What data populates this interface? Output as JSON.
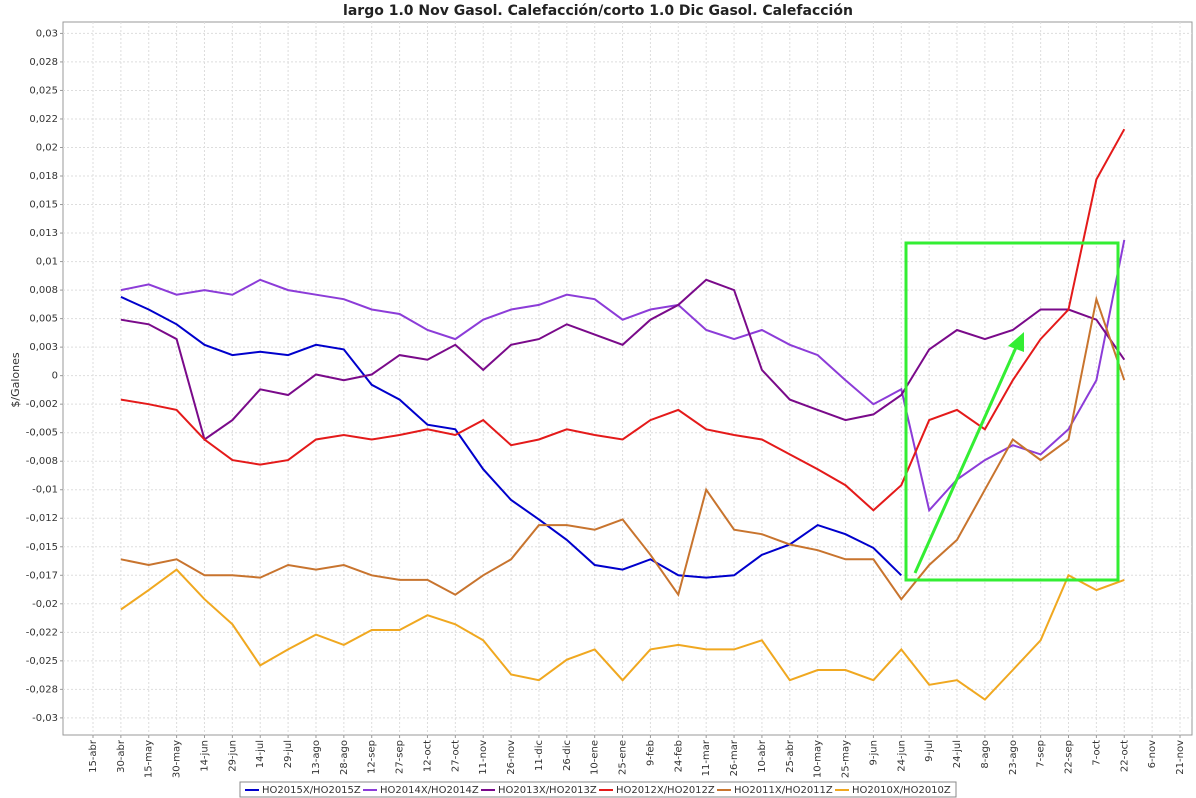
{
  "chart_data": {
    "type": "line",
    "title": "largo 1.0 Nov Gasol. Calefacción/corto 1.0 Dic Gasol. Calefacción",
    "y_label": "$/Galones",
    "categories": [
      "15-abr",
      "30-abr",
      "15-may",
      "30-may",
      "14-jun",
      "29-jun",
      "14-jul",
      "29-jul",
      "13-ago",
      "28-ago",
      "12-sep",
      "27-sep",
      "12-oct",
      "27-oct",
      "11-nov",
      "26-nov",
      "11-dic",
      "26-dic",
      "10-ene",
      "25-ene",
      "9-feb",
      "24-feb",
      "11-mar",
      "26-mar",
      "10-abr",
      "25-abr",
      "10-may",
      "25-may",
      "9-jun",
      "24-jun",
      "9-jul",
      "24-jul",
      "8-ago",
      "23-ago",
      "7-sep",
      "22-sep",
      "7-oct",
      "22-oct",
      "6-nov",
      "21-nov"
    ],
    "ylim": [
      -0.0315,
      0.031
    ],
    "yticks": [
      {
        "value": 0.03,
        "label": "0,03"
      },
      {
        "value": 0.0275,
        "label": "0,028"
      },
      {
        "value": 0.025,
        "label": "0,025"
      },
      {
        "value": 0.0225,
        "label": "0,022"
      },
      {
        "value": 0.02,
        "label": "0,02"
      },
      {
        "value": 0.0175,
        "label": "0,018"
      },
      {
        "value": 0.015,
        "label": "0,015"
      },
      {
        "value": 0.0125,
        "label": "0,013"
      },
      {
        "value": 0.01,
        "label": "0,01"
      },
      {
        "value": 0.0075,
        "label": "0,008"
      },
      {
        "value": 0.005,
        "label": "0,005"
      },
      {
        "value": 0.0025,
        "label": "0,003"
      },
      0,
      {
        "value": -0.0025,
        "label": "-0,002"
      },
      {
        "value": -0.005,
        "label": "-0,005"
      },
      {
        "value": -0.0075,
        "label": "-0,008"
      },
      {
        "value": -0.01,
        "label": "-0,01"
      },
      {
        "value": -0.0125,
        "label": "-0,012"
      },
      {
        "value": -0.015,
        "label": "-0,015"
      },
      {
        "value": -0.0175,
        "label": "-0,017"
      },
      {
        "value": -0.02,
        "label": "-0,02"
      },
      {
        "value": -0.0225,
        "label": "-0,022"
      },
      {
        "value": -0.025,
        "label": "-0,025"
      },
      {
        "value": -0.0275,
        "label": "-0,028"
      },
      {
        "value": -0.03,
        "label": "-0,03"
      }
    ],
    "grid": true,
    "legend": "bottom",
    "series": [
      {
        "name": "HO2015X/HO2015Z",
        "color": "#0000cc",
        "values": [
          null,
          0.0069,
          0.0058,
          0.0045,
          0.0027,
          0.0018,
          0.0021,
          0.0018,
          0.0027,
          0.0023,
          -0.0008,
          -0.0021,
          -0.0043,
          -0.0047,
          -0.0082,
          -0.0109,
          -0.0126,
          -0.0144,
          -0.0166,
          -0.017,
          -0.0161,
          -0.0175,
          -0.0177,
          -0.0175,
          -0.0157,
          -0.0148,
          -0.0131,
          -0.0139,
          -0.0151,
          -0.0175,
          null,
          null,
          null,
          null,
          null,
          null,
          null,
          null,
          null,
          null
        ]
      },
      {
        "name": "HO2014X/HO2014Z",
        "color": "#8c3cd8",
        "values": [
          null,
          0.0075,
          0.008,
          0.0071,
          0.0075,
          0.0071,
          0.0084,
          0.0075,
          0.0071,
          0.0067,
          0.0058,
          0.0054,
          0.004,
          0.0032,
          0.0049,
          0.0058,
          0.0062,
          0.0071,
          0.0067,
          0.0049,
          0.0058,
          0.0062,
          0.004,
          0.0032,
          0.004,
          0.0027,
          0.0018,
          -0.0004,
          -0.0025,
          -0.0012,
          -0.0118,
          -0.0091,
          -0.0074,
          -0.0061,
          -0.0069,
          -0.0047,
          -0.0004,
          0.0119,
          null,
          null
        ]
      },
      {
        "name": "HO2013X/HO2013Z",
        "color": "#7a0a8a",
        "values": [
          null,
          0.0049,
          0.0045,
          0.0032,
          -0.0056,
          -0.0039,
          -0.0012,
          -0.0017,
          0.0001,
          -0.0004,
          0.0001,
          0.0018,
          0.0014,
          0.0027,
          0.0005,
          0.0027,
          0.0032,
          0.0045,
          0.0036,
          0.0027,
          0.0049,
          0.0062,
          0.0084,
          0.0075,
          0.0005,
          -0.0021,
          -0.003,
          -0.0039,
          -0.0034,
          -0.0017,
          0.0023,
          0.004,
          0.0032,
          0.004,
          0.0058,
          0.0058,
          0.0049,
          0.0014,
          null,
          null
        ]
      },
      {
        "name": "HO2012X/HO2012Z",
        "color": "#e41a1a",
        "values": [
          null,
          -0.0021,
          -0.0025,
          -0.003,
          -0.0056,
          -0.0074,
          -0.0078,
          -0.0074,
          -0.0056,
          -0.0052,
          -0.0056,
          -0.0052,
          -0.0047,
          -0.0052,
          -0.0039,
          -0.0061,
          -0.0056,
          -0.0047,
          -0.0052,
          -0.0056,
          -0.0039,
          -0.003,
          -0.0047,
          -0.0052,
          -0.0056,
          -0.0069,
          -0.0082,
          -0.0096,
          -0.0118,
          -0.0096,
          -0.0039,
          -0.003,
          -0.0047,
          -0.0004,
          0.0032,
          0.0058,
          0.0172,
          0.0216,
          null,
          null
        ]
      },
      {
        "name": "HO2011X/HO2011Z",
        "color": "#c8742e",
        "values": [
          null,
          -0.0161,
          -0.0166,
          -0.0161,
          -0.0175,
          -0.0175,
          -0.0177,
          -0.0166,
          -0.017,
          -0.0166,
          -0.0175,
          -0.0179,
          -0.0179,
          -0.0192,
          -0.0175,
          -0.0161,
          -0.0131,
          -0.0131,
          -0.0135,
          -0.0126,
          -0.0157,
          -0.0192,
          -0.01,
          -0.0135,
          -0.0139,
          -0.0148,
          -0.0153,
          -0.0161,
          -0.0161,
          -0.0196,
          -0.0166,
          -0.0144,
          -0.01,
          -0.0056,
          -0.0074,
          -0.0056,
          0.0067,
          -0.0004,
          null,
          null
        ]
      },
      {
        "name": "HO2010X/HO2010Z",
        "color": "#f0a820",
        "values": [
          null,
          -0.0205,
          -0.0188,
          -0.017,
          -0.0196,
          -0.0218,
          -0.0254,
          -0.024,
          -0.0227,
          -0.0236,
          -0.0223,
          -0.0223,
          -0.021,
          -0.0218,
          -0.0232,
          -0.0262,
          -0.0267,
          -0.0249,
          -0.024,
          -0.0267,
          -0.024,
          -0.0236,
          -0.024,
          -0.024,
          -0.0232,
          -0.0267,
          -0.0258,
          -0.0258,
          -0.0267,
          -0.024,
          -0.0271,
          -0.0267,
          -0.0284,
          -0.0258,
          -0.0232,
          -0.0175,
          -0.0188,
          -0.0179,
          null,
          null
        ]
      }
    ]
  }
}
